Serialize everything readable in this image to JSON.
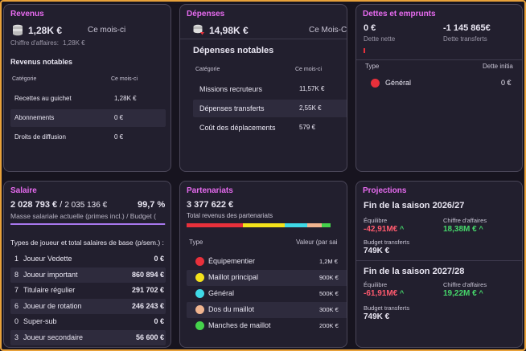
{
  "revenus": {
    "title": "Revenus",
    "amount": "1,28K €",
    "period": "Ce mois-ci",
    "ca_label": "Chiffre d'affaires:",
    "ca_value": "1,28K €",
    "notable_title": "Revenus notables",
    "col_cat": "Catégorie",
    "col_month": "Ce mois-ci",
    "rows": [
      {
        "label": "Recettes au guichet",
        "value": "1,28K €"
      },
      {
        "label": "Abonnements",
        "value": "0 €"
      },
      {
        "label": "Droits de diffusion",
        "value": "0 €"
      }
    ]
  },
  "depenses": {
    "title": "Dépenses",
    "amount": "14,98K €",
    "period": "Ce Mois-Ci",
    "notable_title": "Dépenses notables",
    "col_cat": "Catégorie",
    "col_month": "Ce mois-ci",
    "rows": [
      {
        "label": "Missions recruteurs",
        "value": "11,57K €"
      },
      {
        "label": "Dépenses transferts",
        "value": "2,55K €"
      },
      {
        "label": "Coût des déplacements",
        "value": "579 €"
      }
    ]
  },
  "dettes": {
    "title": "Dettes et emprunts",
    "net_value": "0 €",
    "net_label": "Dette nette",
    "transfer_value": "-1 145 865€",
    "transfer_label": "Dette transferts",
    "col_type": "Type",
    "col_initial": "Dette initia",
    "rows": [
      {
        "label": "Général",
        "value": "0 €",
        "color": "#e8303b"
      }
    ]
  },
  "salaire": {
    "title": "Salaire",
    "current": "2 028 793 €",
    "separator": "/",
    "budget": "2 035 136 €",
    "percent": "99,7 %",
    "fill": 0.997,
    "caption": "Masse salariale actuelle (primes incl.) / Budget (",
    "list_title": "Types de joueur et total salaires de base (p/sem.) :",
    "rows": [
      {
        "count": "1",
        "label": "Joueur Vedette",
        "value": "0 €"
      },
      {
        "count": "8",
        "label": "Joueur important",
        "value": "860 894 €"
      },
      {
        "count": "7",
        "label": "Titulaire régulier",
        "value": "291 702 €"
      },
      {
        "count": "6",
        "label": "Joueur de rotation",
        "value": "246 243 €"
      },
      {
        "count": "0",
        "label": "Super-sub",
        "value": "0 €"
      },
      {
        "count": "3",
        "label": "Joueur secondaire",
        "value": "56 600 €"
      }
    ]
  },
  "partenariats": {
    "title": "Partenariats",
    "amount": "3 377 622 €",
    "caption": "Total revenus des partenariats",
    "col_type": "Type",
    "col_value": "Valeur (par sai",
    "bar": [
      {
        "color": "#e8303b",
        "share": 0.365
      },
      {
        "color": "#f4e21b",
        "share": 0.266
      },
      {
        "color": "#3fd9e6",
        "share": 0.148
      },
      {
        "color": "#f0b48f",
        "share": 0.089
      },
      {
        "color": "#45d24b",
        "share": 0.059
      }
    ],
    "rows": [
      {
        "label": "Équipementier",
        "value": "1,2M €",
        "color": "#e8303b"
      },
      {
        "label": "Maillot principal",
        "value": "900K €",
        "color": "#f4e21b"
      },
      {
        "label": "Général",
        "value": "500K €",
        "color": "#3fd9e6"
      },
      {
        "label": "Dos du maillot",
        "value": "300K €",
        "color": "#f0b48f"
      },
      {
        "label": "Manches de maillot",
        "value": "200K €",
        "color": "#45d24b"
      }
    ]
  },
  "projections": {
    "title": "Projections",
    "seasons": [
      {
        "title": "Fin de la saison 2026/27",
        "eq_label": "Équilibre",
        "eq_value": "-42,91M€",
        "ca_label": "Chiffre d'affaires",
        "ca_value": "18,38M €",
        "bt_label": "Budget transferts",
        "bt_value": "749K €"
      },
      {
        "title": "Fin de la saison 2027/28",
        "eq_label": "Équilibre",
        "eq_value": "-61,91M€",
        "ca_label": "Chiffre d'affaires",
        "ca_value": "19,22M €",
        "bt_label": "Budget transferts",
        "bt_value": "749K €"
      }
    ]
  }
}
